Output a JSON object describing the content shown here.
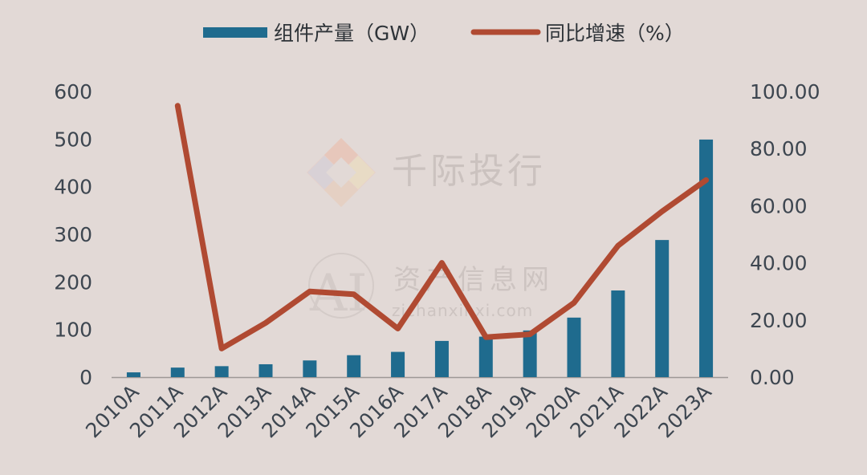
{
  "legend": {
    "bar_label": "组件产量（GW）",
    "line_label": "同比增速（%）"
  },
  "watermark": {
    "brand": "千际投行",
    "site_cn": "资产信息网",
    "site_url": "zichanxinxi.com",
    "logo_text": "AI"
  },
  "colors": {
    "background": "#e2d9d6",
    "bar": "#1f6b8e",
    "line": "#b04a32",
    "axis": "#9e9896",
    "tick_text": "#3d4650"
  },
  "chart_data": {
    "type": "bar",
    "categories": [
      "2010A",
      "2011A",
      "2012A",
      "2013A",
      "2014A",
      "2015A",
      "2016A",
      "2017A",
      "2018A",
      "2019A",
      "2020A",
      "2021A",
      "2022A",
      "2023A"
    ],
    "series": [
      {
        "name": "组件产量（GW）",
        "type": "bar",
        "axis": "left",
        "values": [
          10,
          20,
          23,
          27,
          35,
          46,
          53,
          76,
          85,
          98,
          125,
          182,
          288,
          499
        ]
      },
      {
        "name": "同比增速（%）",
        "type": "line",
        "axis": "right",
        "values": [
          null,
          95,
          10,
          19,
          30,
          29,
          17,
          40,
          14,
          15,
          26,
          46,
          58,
          69
        ]
      }
    ],
    "y_left": {
      "min": 0,
      "max": 600,
      "ticks": [
        "0",
        "100",
        "200",
        "300",
        "400",
        "500",
        "600"
      ]
    },
    "y_right": {
      "min": 0,
      "max": 100,
      "ticks": [
        "0.00",
        "20.00",
        "40.00",
        "60.00",
        "80.00",
        "100.00"
      ]
    },
    "legend_position": "top",
    "grid": false
  }
}
